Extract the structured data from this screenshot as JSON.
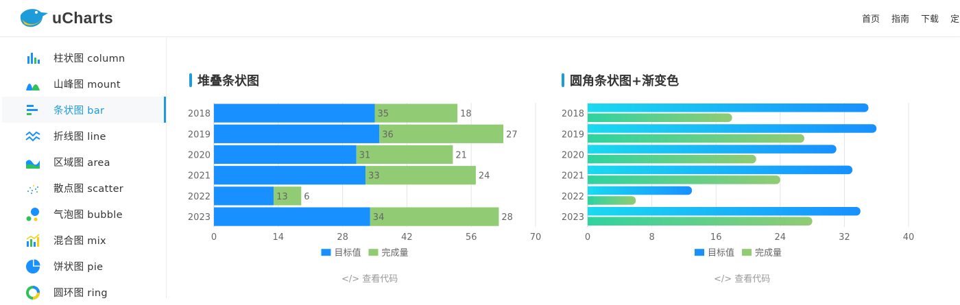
{
  "header": {
    "logo_text": "uCharts",
    "nav": [
      "首页",
      "指南",
      "下载",
      "定"
    ]
  },
  "sidebar": {
    "items": [
      {
        "label": "柱状图  column",
        "icon": "column-chart-icon",
        "active": false
      },
      {
        "label": "山峰图  mount",
        "icon": "mount-chart-icon",
        "active": false
      },
      {
        "label": "条状图  bar",
        "icon": "bar-chart-icon",
        "active": true
      },
      {
        "label": "折线图  line",
        "icon": "line-chart-icon",
        "active": false
      },
      {
        "label": "区域图  area",
        "icon": "area-chart-icon",
        "active": false
      },
      {
        "label": "散点图  scatter",
        "icon": "scatter-chart-icon",
        "active": false
      },
      {
        "label": "气泡图  bubble",
        "icon": "bubble-chart-icon",
        "active": false
      },
      {
        "label": "混合图  mix",
        "icon": "mix-chart-icon",
        "active": false
      },
      {
        "label": "饼状图  pie",
        "icon": "pie-chart-icon",
        "active": false
      },
      {
        "label": "圆环图  ring",
        "icon": "ring-chart-icon",
        "active": false
      }
    ]
  },
  "colors": {
    "accent": "#1e9bd9",
    "target": "#1890ff",
    "done": "#91cb74",
    "grad_cyan": "#1ad9f0",
    "grad_green": "#2fd3a0"
  },
  "panels": [
    {
      "title": "堆叠条状图",
      "code_link": "</> 查看代码"
    },
    {
      "title": "圆角条状图+渐变色",
      "code_link": "</> 查看代码"
    }
  ],
  "chart_data": [
    {
      "type": "bar",
      "stacked": true,
      "title": "堆叠条状图",
      "categories": [
        "2018",
        "2019",
        "2020",
        "2021",
        "2022",
        "2023"
      ],
      "series": [
        {
          "name": "目标值",
          "values": [
            35,
            36,
            31,
            33,
            13,
            34
          ]
        },
        {
          "name": "完成量",
          "values": [
            18,
            27,
            21,
            24,
            6,
            28
          ]
        }
      ],
      "xticks": [
        0,
        14,
        28,
        42,
        56,
        70
      ],
      "xlim": [
        0,
        70
      ],
      "legend": "bottom"
    },
    {
      "type": "bar",
      "stacked": false,
      "rounded": true,
      "gradient": true,
      "title": "圆角条状图+渐变色",
      "categories": [
        "2018",
        "2019",
        "2020",
        "2021",
        "2022",
        "2023"
      ],
      "series": [
        {
          "name": "目标值",
          "values": [
            35,
            36,
            31,
            33,
            13,
            34
          ]
        },
        {
          "name": "完成量",
          "values": [
            18,
            27,
            21,
            24,
            6,
            28
          ]
        }
      ],
      "xticks": [
        0,
        8,
        16,
        24,
        32,
        40
      ],
      "xlim": [
        0,
        40
      ],
      "legend": "bottom"
    }
  ]
}
